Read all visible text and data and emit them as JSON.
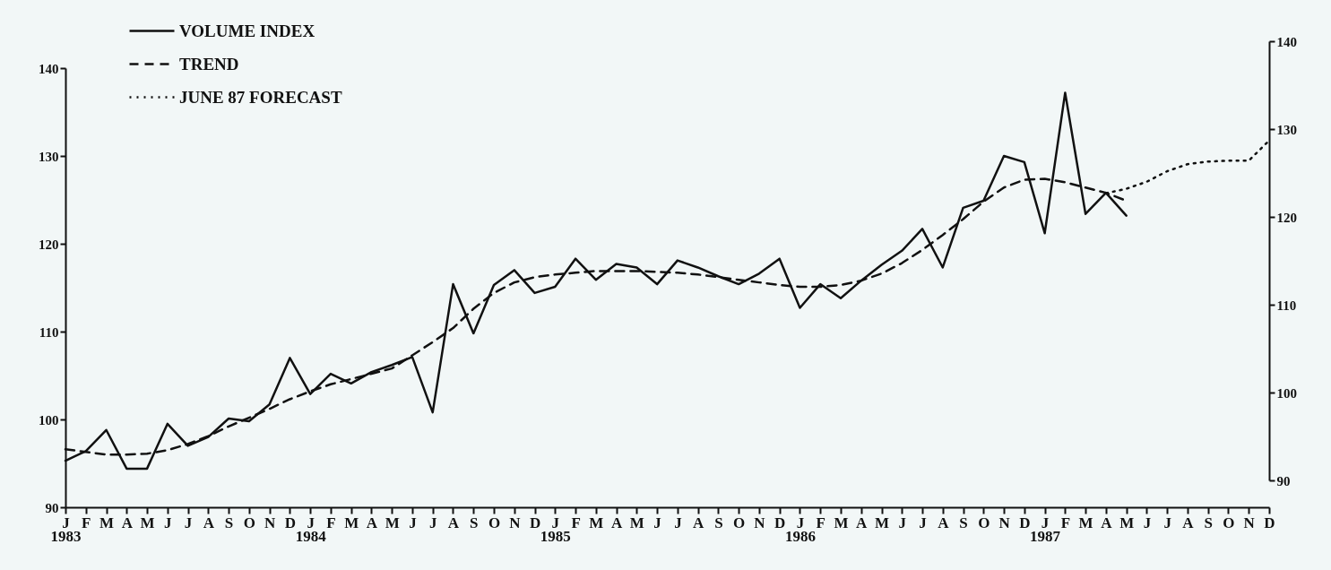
{
  "chart_data": {
    "type": "line",
    "categories": [
      "J\n1983",
      "F",
      "M",
      "A",
      "M",
      "J",
      "J",
      "A",
      "S",
      "O",
      "N",
      "D",
      "J\n1984",
      "F",
      "M",
      "A",
      "M",
      "J",
      "J",
      "A",
      "S",
      "O",
      "N",
      "D",
      "J\n1985",
      "F",
      "M",
      "A",
      "M",
      "J",
      "J",
      "A",
      "S",
      "O",
      "N",
      "D",
      "J\n1986",
      "F",
      "M",
      "A",
      "M",
      "J",
      "J",
      "A",
      "S",
      "O",
      "N",
      "D",
      "J\n1987",
      "F",
      "M",
      "A",
      "M",
      "J",
      "J",
      "A",
      "S",
      "O",
      "N",
      "D"
    ],
    "ylim": [
      90,
      140
    ],
    "yticks": [
      90,
      100,
      110,
      120,
      130,
      140
    ],
    "y2lim": [
      90,
      140
    ],
    "y2ticks": [
      90,
      100,
      110,
      120,
      130,
      140
    ],
    "legend": "top left",
    "series": [
      {
        "name": "VOLUME INDEX",
        "color": "#111111",
        "line_style": "solid",
        "values": [
          95.3,
          96.4,
          98.8,
          94.4,
          94.4,
          99.5,
          97.0,
          98.0,
          100.1,
          99.8,
          101.7,
          107.0,
          102.9,
          105.2,
          104.1,
          105.4,
          106.2,
          107.1,
          100.8,
          115.4,
          109.8,
          115.3,
          117.0,
          114.4,
          115.1,
          118.3,
          115.9,
          117.7,
          117.3,
          115.4,
          118.1,
          117.3,
          116.3,
          115.4,
          116.6,
          118.3,
          112.7,
          115.4,
          113.8,
          115.8,
          117.6,
          119.2,
          121.7,
          117.3,
          124.1,
          124.9,
          130.0,
          129.3,
          121.2,
          137.2,
          123.4,
          125.8,
          123.2,
          null,
          null,
          null,
          null,
          null,
          null,
          null
        ]
      },
      {
        "name": "TREND",
        "color": "#111111",
        "line_style": "dashed",
        "values": [
          96.6,
          96.3,
          96.0,
          96.0,
          96.1,
          96.5,
          97.2,
          98.1,
          99.2,
          100.2,
          101.2,
          102.3,
          103.2,
          104.0,
          104.6,
          105.2,
          105.8,
          107.3,
          108.8,
          110.4,
          112.6,
          114.4,
          115.6,
          116.2,
          116.5,
          116.7,
          116.9,
          116.9,
          116.9,
          116.8,
          116.7,
          116.5,
          116.2,
          115.9,
          115.6,
          115.3,
          115.1,
          115.1,
          115.3,
          115.8,
          116.6,
          117.8,
          119.3,
          121.0,
          122.8,
          124.8,
          126.4,
          127.3,
          127.4,
          127.0,
          126.4,
          125.8,
          124.9,
          null,
          null,
          null,
          null,
          null,
          null,
          null
        ]
      },
      {
        "name": "JUNE 87 FORECAST",
        "color": "#111111",
        "line_style": "dotted",
        "axis": "y2",
        "values": [
          null,
          null,
          null,
          null,
          null,
          null,
          null,
          null,
          null,
          null,
          null,
          null,
          null,
          null,
          null,
          null,
          null,
          null,
          null,
          null,
          null,
          null,
          null,
          null,
          null,
          null,
          null,
          null,
          null,
          null,
          null,
          null,
          null,
          null,
          null,
          null,
          null,
          null,
          null,
          null,
          null,
          null,
          null,
          null,
          null,
          null,
          null,
          null,
          null,
          null,
          null,
          122.7,
          123.2,
          124.0,
          125.2,
          126.0,
          126.3,
          126.4,
          126.4,
          128.7
        ]
      }
    ]
  }
}
